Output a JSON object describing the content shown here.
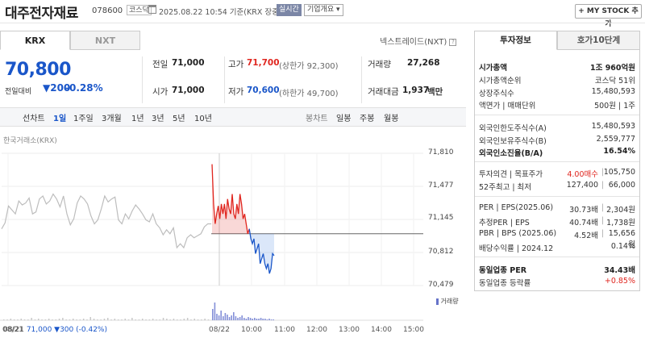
{
  "header": {
    "title": "대주전자재료",
    "code": "078600",
    "market": "코스닥",
    "timestamp": "2025.08.22 10:54  기준(KRX 장중)",
    "realtime": "실시간",
    "company_select": "기업개요 ▾",
    "mystock": "+ MY STOCK 추가"
  },
  "tabs": {
    "krx": "KRX",
    "nxt": "NXT",
    "nxt_status": "넥스트레이드(NXT)"
  },
  "quote": {
    "price": "70,800",
    "change_label": "전일대비",
    "change_value": "▼200",
    "change_pct": "-0.28%"
  },
  "stats": {
    "prev_close_label": "전일",
    "prev_close": "71,000",
    "open_label": "시가",
    "open": "71,000",
    "high_label": "고가",
    "high": "71,700",
    "high_limit": "(상한가 92,300)",
    "low_label": "저가",
    "low": "70,600",
    "low_limit": "(하한가 49,700)",
    "volume_label": "거래량",
    "volume": "27,268",
    "amount_label": "거래대금",
    "amount": "1,937",
    "amount_unit": "백만"
  },
  "period_bar": {
    "chart_label": "선차트",
    "periods": [
      "1일",
      "1주일",
      "3개월",
      "1년",
      "3년",
      "5년",
      "10년"
    ],
    "candle_label": "봉차트",
    "candles": [
      "일봉",
      "주봉",
      "월봉"
    ]
  },
  "chart_source": "한국거래소(KRX)",
  "chart_footer": {
    "date": "08/21",
    "value": "71,000 ▼300 (-0.42%)"
  },
  "chart_data": {
    "type": "line",
    "y_ticks": [
      "71,810",
      "71,477",
      "71,145",
      "70,812",
      "70,479"
    ],
    "ylim": [
      70479,
      71810
    ],
    "x_ticks": [
      "08/21",
      "08/22",
      "10:00",
      "11:00",
      "12:00",
      "13:00",
      "14:00",
      "15:00"
    ],
    "reference_price": 71000,
    "volume_label": "거래량",
    "series": [
      {
        "values": [
          71050,
          71110,
          71280,
          71240,
          71200,
          71330,
          71290,
          71310,
          71360,
          71200,
          71220,
          71350,
          71380,
          71300,
          71330,
          71400,
          71350,
          71270,
          71380,
          71200,
          71090,
          71150,
          71310,
          71380,
          71350,
          71300,
          71180,
          71100,
          71140,
          71250,
          71380,
          71320,
          71350,
          71370,
          71140,
          71100,
          71200,
          71150,
          71230,
          71290,
          71250,
          71200,
          71140,
          71120,
          71200,
          71100,
          71060,
          70990,
          71040,
          71000,
          71060,
          70860,
          70900,
          70860,
          70960,
          70990,
          70960,
          70980,
          71000,
          71070,
          71100,
          71100
        ]
      },
      {
        "values": [
          71700,
          71300,
          71100,
          71200,
          71280,
          71150,
          71300,
          71200,
          71300,
          71150,
          71350,
          71250,
          71200,
          71400,
          71200,
          71150,
          71300,
          71200,
          71400,
          71300,
          71150,
          71200,
          71100,
          71000,
          71050,
          70950,
          70900,
          70950,
          70800,
          70850,
          70900,
          70700,
          70750,
          70800,
          70700,
          70650,
          70700,
          70600,
          70650,
          70800,
          70780
        ]
      }
    ]
  },
  "right_panel": {
    "tab_info": "투자정보",
    "tab_order": "호가10단계",
    "rows1": [
      {
        "label": "시가총액",
        "value": "1조 960억원"
      },
      {
        "label": "시가총액순위",
        "value": "코스닥 51위"
      },
      {
        "label": "상장주식수",
        "value": "15,480,593"
      },
      {
        "label": "액면가 | 매매단위",
        "value": "500원 | 1주"
      }
    ],
    "rows2": [
      {
        "label": "외국인한도주식수(A)",
        "value": "15,480,593"
      },
      {
        "label": "외국인보유주식수(B)",
        "value": "2,559,777"
      },
      {
        "label": "외국인소진율(B/A)",
        "value": "16.54%"
      }
    ],
    "rows3": [
      {
        "label": "투자의견 | 목표주가",
        "value1": "4.00매수",
        "value2": "105,750"
      },
      {
        "label": "52주최고 | 최저",
        "value1": "127,400",
        "value2": "66,000"
      }
    ],
    "rows4": [
      {
        "label": "PER | EPS(2025.06)",
        "value1": "30.73배",
        "value2": "2,304원"
      },
      {
        "label": "추정PER | EPS",
        "value1": "40.74배",
        "value2": "1,738원"
      },
      {
        "label": "PBR | BPS (2025.06)",
        "value1": "4.52배",
        "value2": "15,656원"
      },
      {
        "label": "배당수익률 | 2024.12",
        "value": "0.14%"
      }
    ],
    "rows5": [
      {
        "label": "동일업종 PER",
        "value": "34.43배"
      },
      {
        "label": "동일업종 등락률",
        "value": "+0.85%"
      }
    ]
  },
  "colors": {
    "up": "#e0261f",
    "down": "#1a56c9",
    "accent": "#1a56c9"
  }
}
